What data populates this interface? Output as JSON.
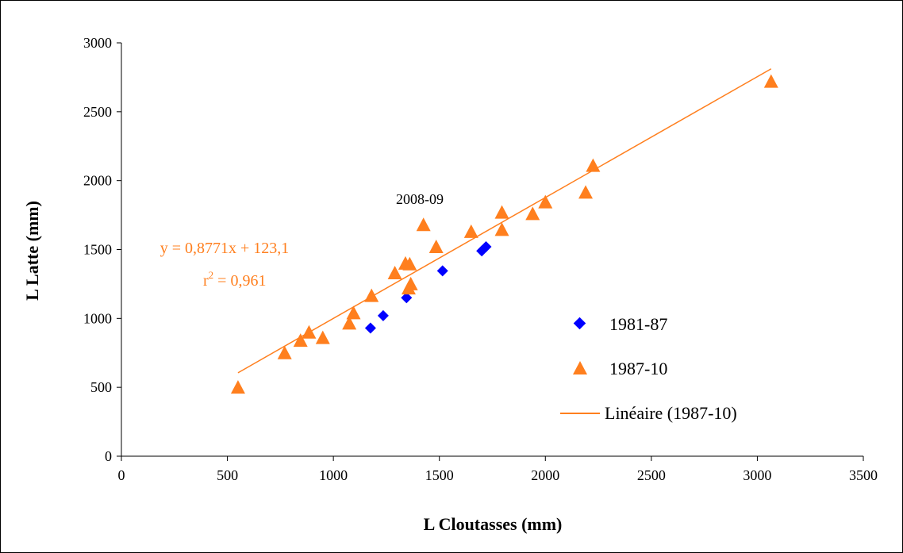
{
  "chart_data": {
    "type": "scatter",
    "title": "",
    "xlabel": "L Cloutasses (mm)",
    "ylabel": "L Latte (mm)",
    "xlim": [
      0,
      3500
    ],
    "ylim": [
      0,
      3000
    ],
    "x_ticks": [
      0,
      500,
      1000,
      1500,
      2000,
      2500,
      3000,
      3500
    ],
    "y_ticks": [
      0,
      500,
      1000,
      1500,
      2000,
      2500,
      3000
    ],
    "x_tick_labels": [
      "0",
      "500",
      "1000",
      "1500",
      "2000",
      "2500",
      "3000",
      "3500"
    ],
    "y_tick_labels": [
      "0",
      "500",
      "1000",
      "1500",
      "2000",
      "2500",
      "3000"
    ],
    "grid": false,
    "legend_position": "right",
    "series": [
      {
        "name": "1981-87",
        "marker": "diamond",
        "color": "#0000ff",
        "x": [
          1175,
          1235,
          1345,
          1515,
          1700,
          1720
        ],
        "y": [
          930,
          1020,
          1150,
          1345,
          1490,
          1520
        ]
      },
      {
        "name": "1987-10",
        "marker": "triangle",
        "color": "#ff7f1e",
        "x": [
          550,
          770,
          845,
          885,
          950,
          1075,
          1095,
          1180,
          1290,
          1340,
          1360,
          1355,
          1365,
          1425,
          1485,
          1650,
          1795,
          1795,
          1940,
          2000,
          2190,
          2225,
          3065
        ],
        "y": [
          500,
          750,
          840,
          900,
          860,
          965,
          1040,
          1165,
          1330,
          1400,
          1395,
          1220,
          1250,
          1680,
          1520,
          1630,
          1770,
          1645,
          1760,
          1845,
          1915,
          2110,
          2720
        ]
      }
    ],
    "trendline": {
      "name": "Linéaire (1987-10)",
      "color": "#ff7f1e",
      "slope": 0.8771,
      "intercept": 123.1,
      "x_range": [
        550,
        3065
      ],
      "equation": "y = 0,8771x + 123,1",
      "r2_prefix": "r",
      "r2_exp": "2",
      "r2_value": " = 0,961"
    },
    "annotations": [
      {
        "text": "2008-09",
        "x": 1410,
        "y": 1855
      }
    ]
  }
}
